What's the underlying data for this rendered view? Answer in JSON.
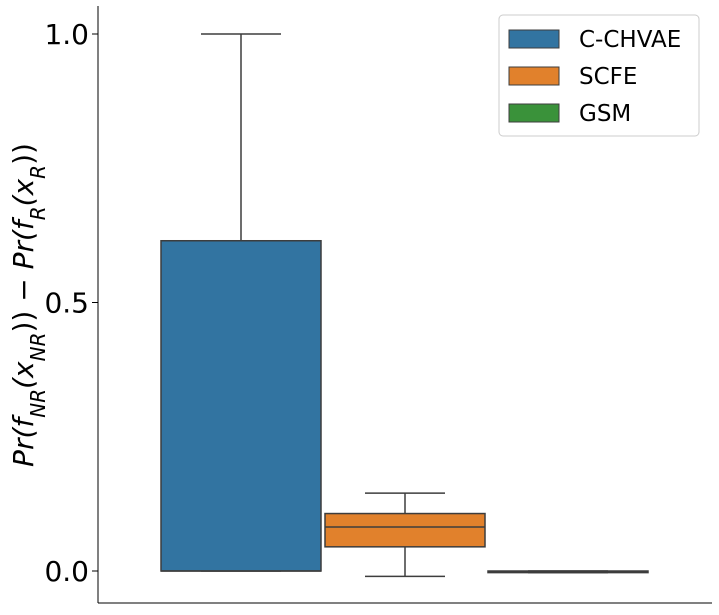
{
  "chart_data": {
    "type": "box",
    "ylabel": "Pr(f_NR(x_NR)) − Pr(f_R(x_R))",
    "ylim": [
      -0.06,
      1.05
    ],
    "yticks": [
      0.0,
      0.5,
      1.0
    ],
    "ytick_labels": [
      "0.0",
      "0.5",
      "1.0"
    ],
    "grid": false,
    "legend_position": "top-right",
    "series": [
      {
        "name": "C-CHVAE",
        "color": "#3274a1",
        "whisker_low": 0.0,
        "q1": 0.0,
        "median": 0.0,
        "q3": 0.615,
        "whisker_high": 1.0
      },
      {
        "name": "SCFE",
        "color": "#e1812c",
        "whisker_low": -0.01,
        "q1": 0.045,
        "median": 0.082,
        "q3": 0.107,
        "whisker_high": 0.145
      },
      {
        "name": "GSM",
        "color": "#3a923a",
        "whisker_low": -0.003,
        "q1": -0.003,
        "median": -0.002,
        "q3": 0.0,
        "whisker_high": 0.0
      }
    ]
  }
}
